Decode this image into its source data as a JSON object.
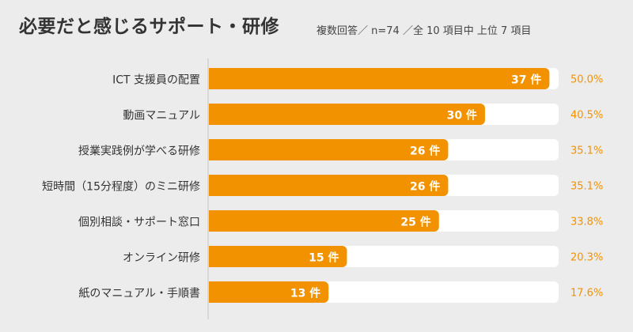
{
  "header": {
    "title": "必要だと感じるサポート・研修",
    "subtitle": "複数回答／ n=74 ／全 10 項目中 上位 7 項目"
  },
  "colors": {
    "bar": "#f39200",
    "track": "#ffffff",
    "label": "#333333",
    "percent": "#f39200",
    "value_text": "#ffffff"
  },
  "chart_data": {
    "type": "bar",
    "orientation": "horizontal",
    "categories": [
      "ICT 支援員の配置",
      "動画マニュアル",
      "授業実践例が学べる研修",
      "短時間（15分程度）のミニ研修",
      "個別相談・サポート窓口",
      "オンライン研修",
      "紙のマニュアル・手順書"
    ],
    "values": [
      37,
      30,
      26,
      26,
      25,
      15,
      13
    ],
    "value_labels": [
      "37 件",
      "30 件",
      "26 件",
      "26 件",
      "25 件",
      "15 件",
      "13 件"
    ],
    "percentages": [
      "50.0%",
      "40.5%",
      "35.1%",
      "35.1%",
      "33.8%",
      "20.3%",
      "17.6%"
    ],
    "xlim": [
      0,
      38
    ]
  }
}
